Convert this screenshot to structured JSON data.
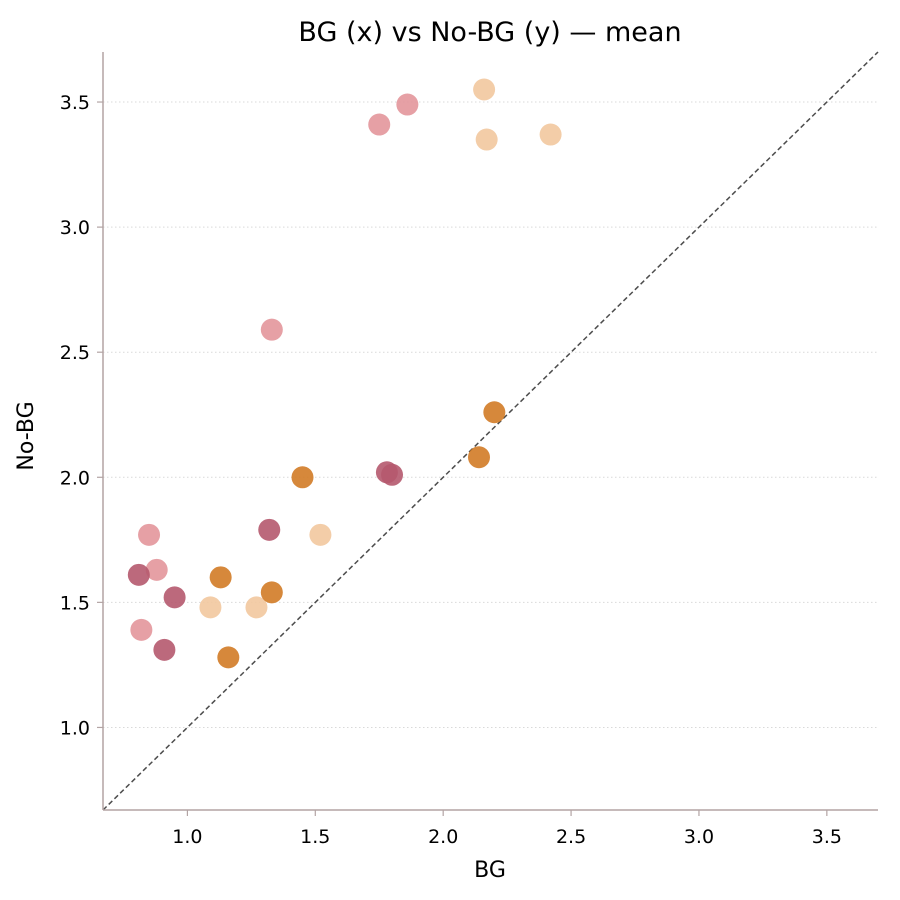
{
  "chart_data": {
    "type": "scatter",
    "title": "BG (x) vs No-BG (y) — mean",
    "xlabel": "BG",
    "ylabel": "No-BG",
    "xlim": [
      0.67,
      3.7
    ],
    "ylim": [
      0.67,
      3.7
    ],
    "xticks": [
      "1.0",
      "1.5",
      "2.0",
      "2.5",
      "3.0",
      "3.5"
    ],
    "yticks": [
      "1.0",
      "1.5",
      "2.0",
      "2.5",
      "3.0",
      "3.5"
    ],
    "grid": "horizontal dotted",
    "reference_line": "y = x (dashed)",
    "series": [
      {
        "color": "#e3969b",
        "points": [
          [
            1.75,
            3.41
          ],
          [
            1.86,
            3.49
          ],
          [
            1.33,
            2.59
          ],
          [
            0.85,
            1.77
          ],
          [
            0.88,
            1.63
          ],
          [
            0.82,
            1.39
          ]
        ]
      },
      {
        "color": "#f2c89e",
        "points": [
          [
            2.16,
            3.55
          ],
          [
            2.17,
            3.35
          ],
          [
            2.42,
            3.37
          ],
          [
            1.52,
            1.77
          ],
          [
            1.09,
            1.48
          ],
          [
            1.27,
            1.48
          ]
        ]
      },
      {
        "color": "#b5596e",
        "points": [
          [
            1.78,
            2.02
          ],
          [
            1.8,
            2.01
          ],
          [
            1.32,
            1.79
          ],
          [
            0.81,
            1.61
          ],
          [
            0.95,
            1.52
          ],
          [
            0.91,
            1.31
          ]
        ]
      },
      {
        "color": "#d27b26",
        "points": [
          [
            2.2,
            2.26
          ],
          [
            2.14,
            2.08
          ],
          [
            1.45,
            2.0
          ],
          [
            1.13,
            1.6
          ],
          [
            1.33,
            1.54
          ],
          [
            1.16,
            1.28
          ]
        ]
      }
    ]
  }
}
